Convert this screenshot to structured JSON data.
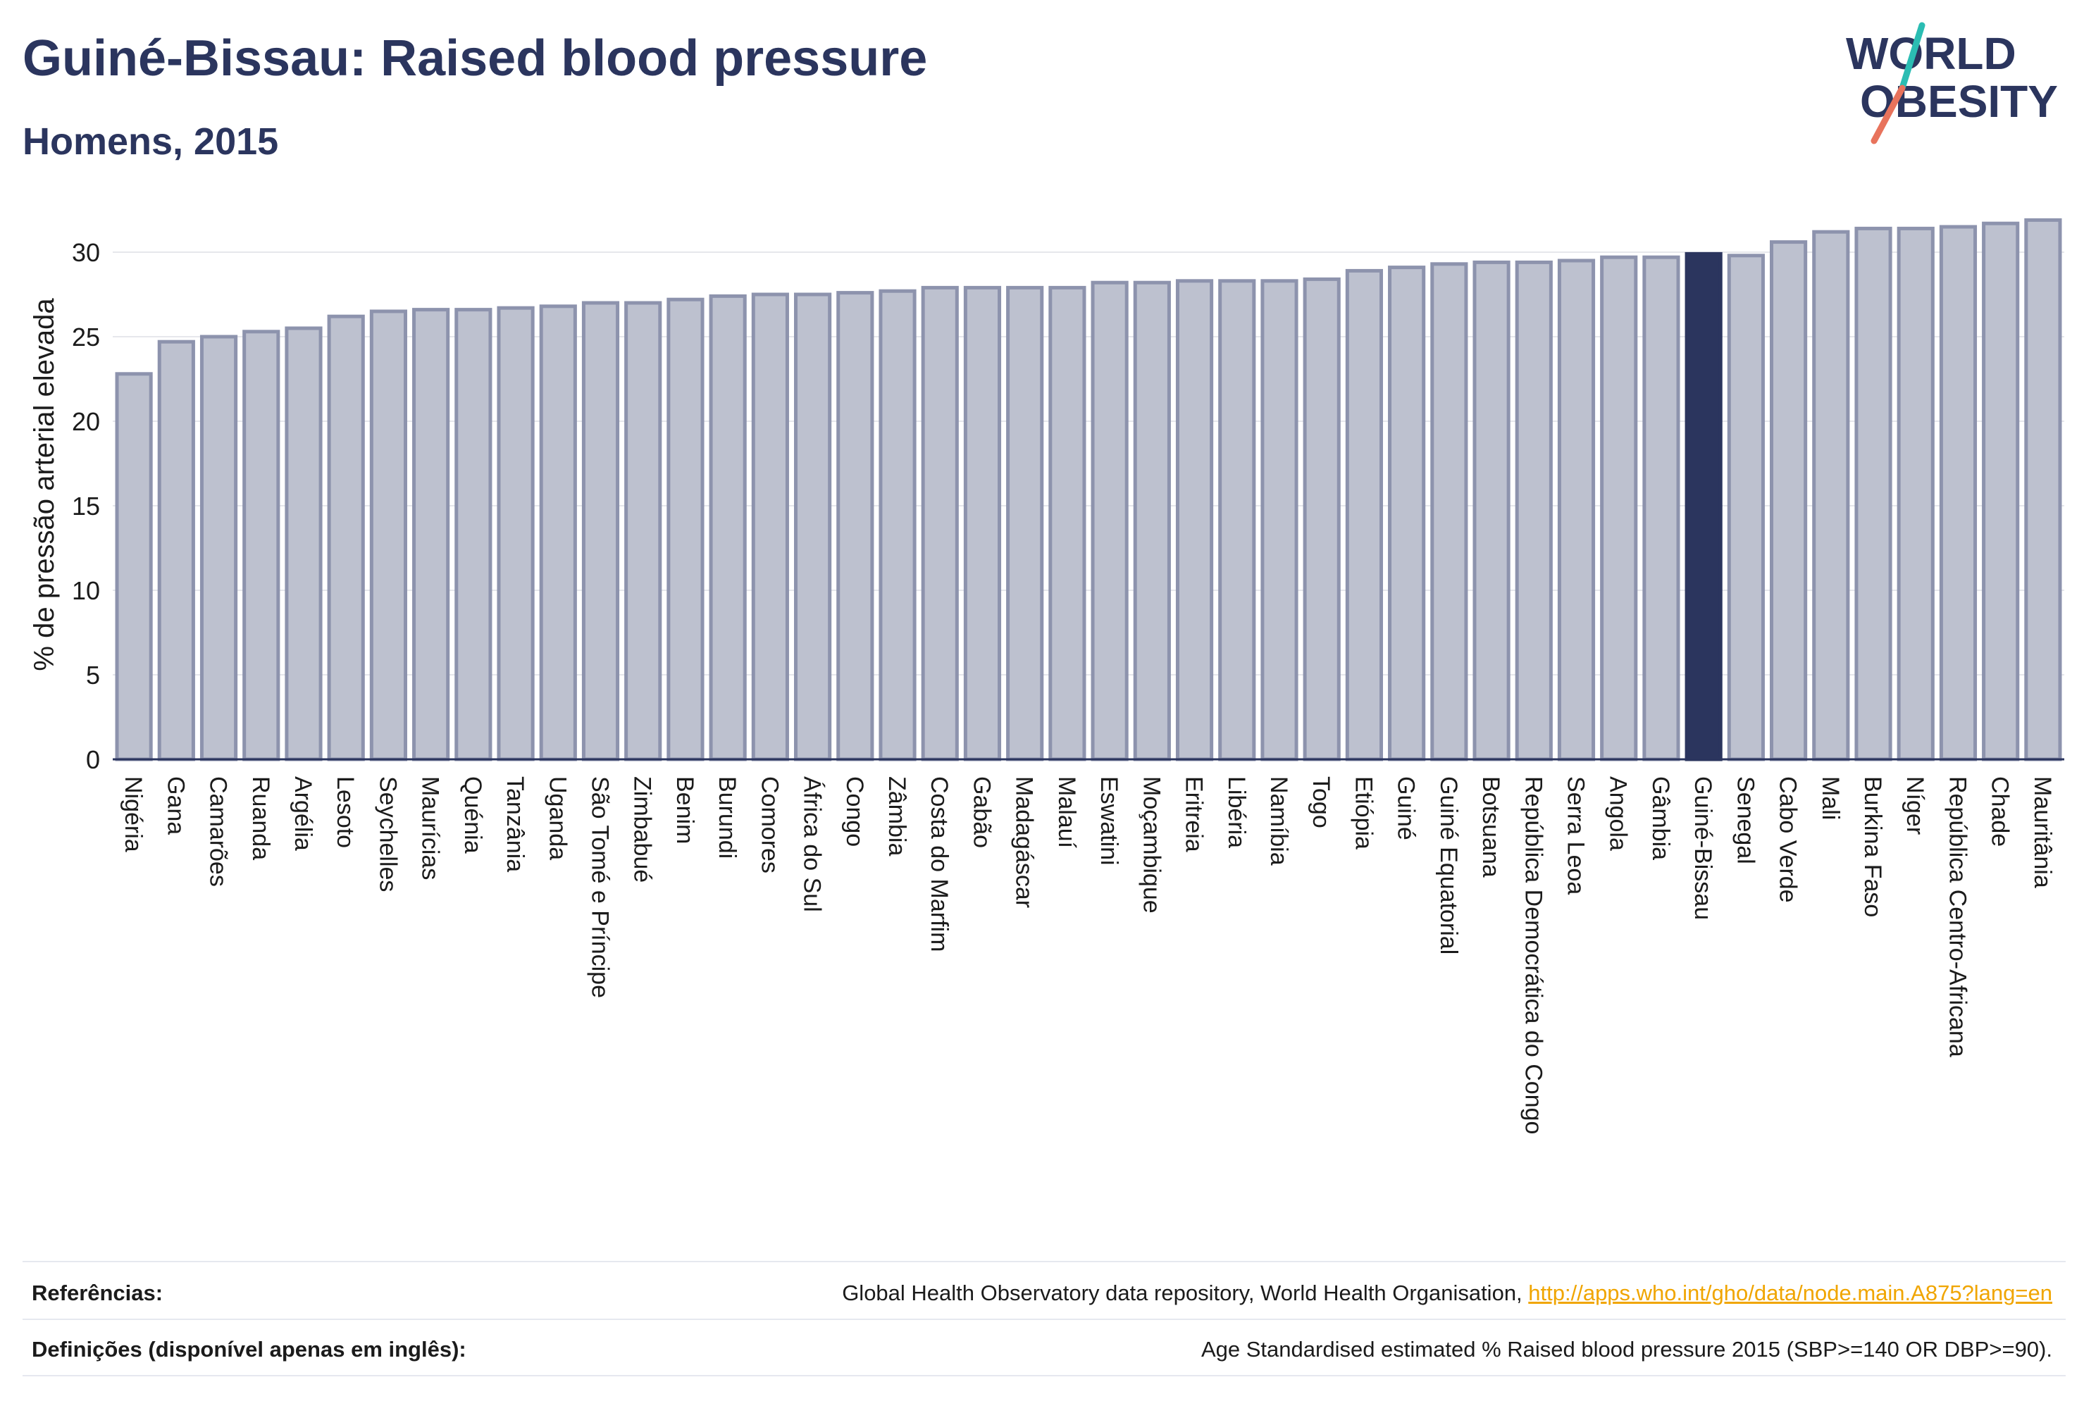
{
  "header": {
    "title": "Guiné-Bissau: Raised blood pressure",
    "subtitle": "Homens, 2015"
  },
  "logo": {
    "line1": "WORLD",
    "line2": "OBESITY"
  },
  "colors": {
    "bar": "#bdc1cf",
    "bar_border": "#8d93ad",
    "highlight": "#2b355e",
    "grid": "#e6e7ec",
    "axis": "#2b355e",
    "logo_text": "#2b355e",
    "logo_teal": "#2bbdb3",
    "logo_coral": "#e8735c"
  },
  "chart_data": {
    "type": "bar",
    "ylabel": "% de pressão arterial elevada",
    "ylim": [
      0,
      32.5
    ],
    "yticks": [
      0,
      5,
      10,
      15,
      20,
      25,
      30
    ],
    "grid": true,
    "highlight": "Guiné-Bissau",
    "categories": [
      "Nigéria",
      "Gana",
      "Camarões",
      "Ruanda",
      "Argélia",
      "Lesoto",
      "Seychelles",
      "Maurícias",
      "Quénia",
      "Tanzânia",
      "Uganda",
      "São Tomé e Príncipe",
      "Zimbabué",
      "Benim",
      "Burundi",
      "Comores",
      "África do Sul",
      "Congo",
      "Zâmbia",
      "Costa do Marfim",
      "Gabão",
      "Madagáscar",
      "Malauí",
      "Eswatini",
      "Moçambique",
      "Eritreia",
      "Libéria",
      "Namíbia",
      "Togo",
      "Etiópia",
      "Guiné",
      "Guiné Equatorial",
      "Botsuana",
      "República Democrática do Congo",
      "Serra Leoa",
      "Angola",
      "Gâmbia",
      "Guiné-Bissau",
      "Senegal",
      "Cabo Verde",
      "Mali",
      "Burkina Faso",
      "Níger",
      "República Centro-Africana",
      "Chade",
      "Mauritânia"
    ],
    "values": [
      22.8,
      24.7,
      25.0,
      25.3,
      25.5,
      26.2,
      26.5,
      26.6,
      26.6,
      26.7,
      26.8,
      27.0,
      27.0,
      27.2,
      27.4,
      27.5,
      27.5,
      27.6,
      27.7,
      27.9,
      27.9,
      27.9,
      27.9,
      28.2,
      28.2,
      28.3,
      28.3,
      28.3,
      28.4,
      28.9,
      29.1,
      29.3,
      29.4,
      29.4,
      29.5,
      29.7,
      29.7,
      29.9,
      29.8,
      30.6,
      31.2,
      31.4,
      31.4,
      31.5,
      31.7,
      31.9
    ]
  },
  "footer": {
    "references_label": "Referências:",
    "references_text": "Global Health Observatory data repository, World Health Organisation, ",
    "references_link": "http://apps.who.int/gho/data/node.main.A875?lang=en",
    "definitions_label": "Definições (disponível apenas em inglês):",
    "definitions_text": "Age Standardised estimated % Raised blood pressure 2015 (SBP>=140 OR DBP>=90)."
  }
}
